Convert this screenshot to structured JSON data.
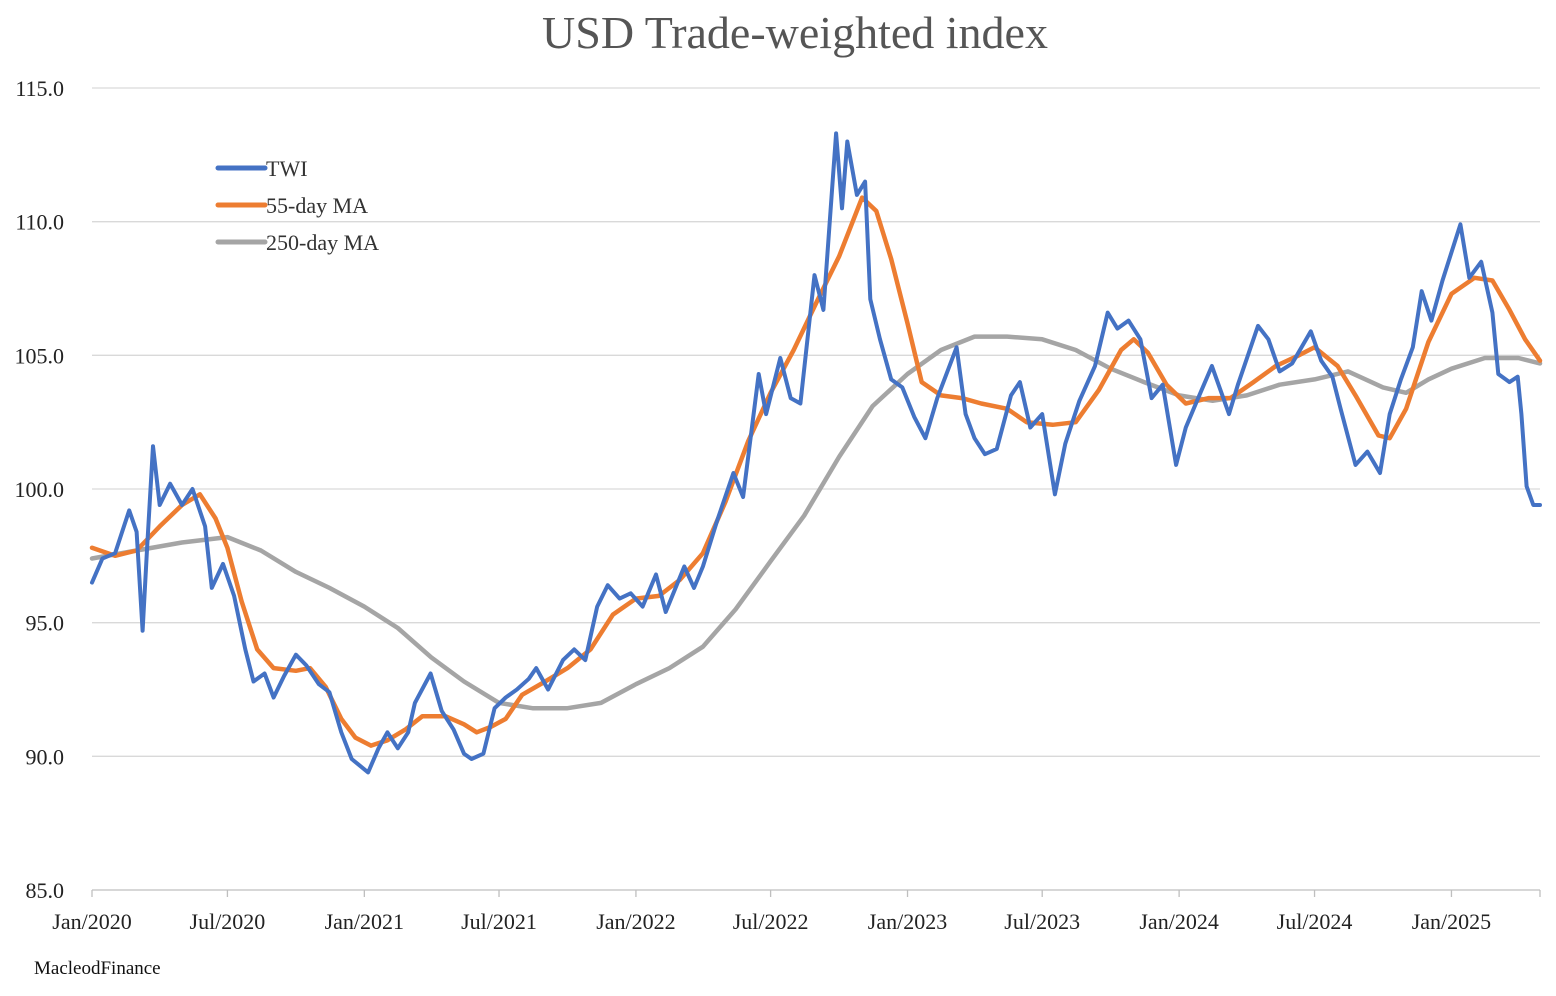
{
  "chart_data": {
    "type": "line",
    "title": "USD Trade-weighted index",
    "xlabel": "",
    "ylabel": "",
    "source": "MacleodFinance",
    "ylim": [
      85.0,
      115.0
    ],
    "y_ticks": [
      "85.0",
      "90.0",
      "95.0",
      "100.0",
      "105.0",
      "110.0",
      "115.0"
    ],
    "y_tick_values": [
      85,
      90,
      95,
      100,
      105,
      110,
      115
    ],
    "x_range": [
      "2020-01-01",
      "2025-04-30"
    ],
    "x_ticks": [
      {
        "label": "Jan/2020",
        "date": "2020-01-01"
      },
      {
        "label": "Jul/2020",
        "date": "2020-07-01"
      },
      {
        "label": "Jan/2021",
        "date": "2021-01-01"
      },
      {
        "label": "Jul/2021",
        "date": "2021-07-01"
      },
      {
        "label": "Jan/2022",
        "date": "2022-01-01"
      },
      {
        "label": "Jul/2022",
        "date": "2022-07-01"
      },
      {
        "label": "Jan/2023",
        "date": "2023-01-01"
      },
      {
        "label": "Jul/2023",
        "date": "2023-07-01"
      },
      {
        "label": "Jan/2024",
        "date": "2024-01-01"
      },
      {
        "label": "Jul/2024",
        "date": "2024-07-01"
      },
      {
        "label": "Jan/2025",
        "date": "2025-01-01"
      }
    ],
    "grid": "horizontal",
    "legend_position": "top-left",
    "series": [
      {
        "name": "TWI",
        "color": "#4472C4",
        "points": [
          [
            "2020-01-01",
            96.5
          ],
          [
            "2020-01-15",
            97.4
          ],
          [
            "2020-02-01",
            97.6
          ],
          [
            "2020-02-20",
            99.2
          ],
          [
            "2020-03-01",
            98.4
          ],
          [
            "2020-03-09",
            94.7
          ],
          [
            "2020-03-15",
            97.8
          ],
          [
            "2020-03-23",
            101.6
          ],
          [
            "2020-04-01",
            99.4
          ],
          [
            "2020-04-15",
            100.2
          ],
          [
            "2020-05-01",
            99.4
          ],
          [
            "2020-05-15",
            100.0
          ],
          [
            "2020-06-01",
            98.6
          ],
          [
            "2020-06-10",
            96.3
          ],
          [
            "2020-06-25",
            97.2
          ],
          [
            "2020-07-10",
            96.0
          ],
          [
            "2020-07-25",
            94.0
          ],
          [
            "2020-08-05",
            92.8
          ],
          [
            "2020-08-20",
            93.1
          ],
          [
            "2020-09-01",
            92.2
          ],
          [
            "2020-09-15",
            93.0
          ],
          [
            "2020-10-01",
            93.8
          ],
          [
            "2020-10-15",
            93.4
          ],
          [
            "2020-11-01",
            92.7
          ],
          [
            "2020-11-15",
            92.4
          ],
          [
            "2020-12-01",
            90.9
          ],
          [
            "2020-12-15",
            89.9
          ],
          [
            "2021-01-06",
            89.4
          ],
          [
            "2021-01-20",
            90.3
          ],
          [
            "2021-02-01",
            90.9
          ],
          [
            "2021-02-15",
            90.3
          ],
          [
            "2021-03-01",
            90.9
          ],
          [
            "2021-03-10",
            92.0
          ],
          [
            "2021-03-31",
            93.1
          ],
          [
            "2021-04-15",
            91.7
          ],
          [
            "2021-05-01",
            91.0
          ],
          [
            "2021-05-15",
            90.1
          ],
          [
            "2021-05-25",
            89.9
          ],
          [
            "2021-06-10",
            90.1
          ],
          [
            "2021-06-25",
            91.8
          ],
          [
            "2021-07-10",
            92.2
          ],
          [
            "2021-07-25",
            92.5
          ],
          [
            "2021-08-10",
            92.9
          ],
          [
            "2021-08-20",
            93.3
          ],
          [
            "2021-09-05",
            92.5
          ],
          [
            "2021-09-25",
            93.6
          ],
          [
            "2021-10-10",
            94.0
          ],
          [
            "2021-10-25",
            93.6
          ],
          [
            "2021-11-10",
            95.6
          ],
          [
            "2021-11-24",
            96.4
          ],
          [
            "2021-12-10",
            95.9
          ],
          [
            "2021-12-25",
            96.1
          ],
          [
            "2022-01-10",
            95.6
          ],
          [
            "2022-01-28",
            96.8
          ],
          [
            "2022-02-10",
            95.4
          ],
          [
            "2022-03-07",
            97.1
          ],
          [
            "2022-03-20",
            96.3
          ],
          [
            "2022-04-01",
            97.1
          ],
          [
            "2022-04-20",
            98.8
          ],
          [
            "2022-05-12",
            100.6
          ],
          [
            "2022-05-25",
            99.7
          ],
          [
            "2022-06-15",
            104.3
          ],
          [
            "2022-06-25",
            102.8
          ],
          [
            "2022-07-14",
            104.9
          ],
          [
            "2022-07-28",
            103.4
          ],
          [
            "2022-08-10",
            103.2
          ],
          [
            "2022-08-29",
            108.0
          ],
          [
            "2022-09-10",
            106.7
          ],
          [
            "2022-09-27",
            113.3
          ],
          [
            "2022-10-05",
            110.5
          ],
          [
            "2022-10-12",
            113.0
          ],
          [
            "2022-10-25",
            111.0
          ],
          [
            "2022-11-05",
            111.5
          ],
          [
            "2022-11-12",
            107.1
          ],
          [
            "2022-11-25",
            105.6
          ],
          [
            "2022-12-10",
            104.1
          ],
          [
            "2022-12-25",
            103.8
          ],
          [
            "2023-01-10",
            102.7
          ],
          [
            "2023-01-25",
            101.9
          ],
          [
            "2023-02-10",
            103.4
          ],
          [
            "2023-03-08",
            105.3
          ],
          [
            "2023-03-20",
            102.8
          ],
          [
            "2023-04-01",
            101.9
          ],
          [
            "2023-04-15",
            101.3
          ],
          [
            "2023-05-01",
            101.5
          ],
          [
            "2023-05-20",
            103.5
          ],
          [
            "2023-06-01",
            104.0
          ],
          [
            "2023-06-15",
            102.3
          ],
          [
            "2023-07-01",
            102.8
          ],
          [
            "2023-07-18",
            99.8
          ],
          [
            "2023-08-01",
            101.7
          ],
          [
            "2023-08-20",
            103.3
          ],
          [
            "2023-09-10",
            104.6
          ],
          [
            "2023-09-27",
            106.6
          ],
          [
            "2023-10-10",
            106.0
          ],
          [
            "2023-10-25",
            106.3
          ],
          [
            "2023-11-10",
            105.6
          ],
          [
            "2023-11-25",
            103.4
          ],
          [
            "2023-12-10",
            103.9
          ],
          [
            "2023-12-28",
            100.9
          ],
          [
            "2024-01-10",
            102.3
          ],
          [
            "2024-01-25",
            103.3
          ],
          [
            "2024-02-14",
            104.6
          ],
          [
            "2024-03-08",
            102.8
          ],
          [
            "2024-03-20",
            103.9
          ],
          [
            "2024-04-16",
            106.1
          ],
          [
            "2024-04-30",
            105.6
          ],
          [
            "2024-05-15",
            104.4
          ],
          [
            "2024-06-01",
            104.7
          ],
          [
            "2024-06-26",
            105.9
          ],
          [
            "2024-07-10",
            104.8
          ],
          [
            "2024-07-25",
            104.2
          ],
          [
            "2024-08-05",
            103.0
          ],
          [
            "2024-08-25",
            100.9
          ],
          [
            "2024-09-10",
            101.4
          ],
          [
            "2024-09-27",
            100.6
          ],
          [
            "2024-10-10",
            102.8
          ],
          [
            "2024-10-25",
            104.1
          ],
          [
            "2024-11-10",
            105.3
          ],
          [
            "2024-11-22",
            107.4
          ],
          [
            "2024-12-05",
            106.3
          ],
          [
            "2024-12-20",
            107.8
          ],
          [
            "2025-01-13",
            109.9
          ],
          [
            "2025-01-25",
            107.9
          ],
          [
            "2025-02-10",
            108.5
          ],
          [
            "2025-02-25",
            106.6
          ],
          [
            "2025-03-05",
            104.3
          ],
          [
            "2025-03-20",
            104.0
          ],
          [
            "2025-03-31",
            104.2
          ],
          [
            "2025-04-05",
            102.8
          ],
          [
            "2025-04-12",
            100.1
          ],
          [
            "2025-04-21",
            99.4
          ],
          [
            "2025-04-30",
            99.4
          ]
        ]
      },
      {
        "name": "55-day MA",
        "color": "#ED7D31",
        "points": [
          [
            "2020-01-01",
            97.8
          ],
          [
            "2020-02-01",
            97.5
          ],
          [
            "2020-03-01",
            97.7
          ],
          [
            "2020-04-01",
            98.6
          ],
          [
            "2020-05-01",
            99.4
          ],
          [
            "2020-05-25",
            99.8
          ],
          [
            "2020-06-15",
            98.9
          ],
          [
            "2020-07-01",
            97.8
          ],
          [
            "2020-07-20",
            95.8
          ],
          [
            "2020-08-10",
            94.0
          ],
          [
            "2020-09-01",
            93.3
          ],
          [
            "2020-10-01",
            93.2
          ],
          [
            "2020-10-20",
            93.3
          ],
          [
            "2020-11-10",
            92.6
          ],
          [
            "2020-12-01",
            91.4
          ],
          [
            "2020-12-20",
            90.7
          ],
          [
            "2021-01-10",
            90.4
          ],
          [
            "2021-02-01",
            90.6
          ],
          [
            "2021-02-25",
            91.0
          ],
          [
            "2021-03-20",
            91.5
          ],
          [
            "2021-04-20",
            91.5
          ],
          [
            "2021-05-15",
            91.2
          ],
          [
            "2021-06-01",
            90.9
          ],
          [
            "2021-06-20",
            91.1
          ],
          [
            "2021-07-10",
            91.4
          ],
          [
            "2021-08-01",
            92.3
          ],
          [
            "2021-09-01",
            92.8
          ],
          [
            "2021-10-01",
            93.3
          ],
          [
            "2021-11-01",
            94.0
          ],
          [
            "2021-12-01",
            95.3
          ],
          [
            "2022-01-01",
            95.9
          ],
          [
            "2022-02-01",
            96.0
          ],
          [
            "2022-03-01",
            96.6
          ],
          [
            "2022-04-01",
            97.6
          ],
          [
            "2022-05-01",
            99.5
          ],
          [
            "2022-06-01",
            101.8
          ],
          [
            "2022-07-01",
            103.6
          ],
          [
            "2022-08-01",
            105.2
          ],
          [
            "2022-09-01",
            107.0
          ],
          [
            "2022-10-01",
            108.7
          ],
          [
            "2022-11-01",
            110.9
          ],
          [
            "2022-11-20",
            110.4
          ],
          [
            "2022-12-10",
            108.6
          ],
          [
            "2023-01-01",
            106.2
          ],
          [
            "2023-01-20",
            104.0
          ],
          [
            "2023-02-15",
            103.5
          ],
          [
            "2023-03-15",
            103.4
          ],
          [
            "2023-04-10",
            103.2
          ],
          [
            "2023-05-15",
            103.0
          ],
          [
            "2023-06-10",
            102.5
          ],
          [
            "2023-07-15",
            102.4
          ],
          [
            "2023-08-15",
            102.5
          ],
          [
            "2023-09-15",
            103.7
          ],
          [
            "2023-10-15",
            105.2
          ],
          [
            "2023-11-01",
            105.6
          ],
          [
            "2023-11-20",
            105.1
          ],
          [
            "2023-12-15",
            103.9
          ],
          [
            "2024-01-10",
            103.2
          ],
          [
            "2024-02-10",
            103.4
          ],
          [
            "2024-03-10",
            103.4
          ],
          [
            "2024-04-10",
            104.0
          ],
          [
            "2024-05-10",
            104.6
          ],
          [
            "2024-06-10",
            105.0
          ],
          [
            "2024-07-01",
            105.3
          ],
          [
            "2024-08-01",
            104.6
          ],
          [
            "2024-08-25",
            103.5
          ],
          [
            "2024-09-25",
            102.0
          ],
          [
            "2024-10-10",
            101.9
          ],
          [
            "2024-11-01",
            103.0
          ],
          [
            "2024-12-01",
            105.5
          ],
          [
            "2025-01-01",
            107.3
          ],
          [
            "2025-02-01",
            107.9
          ],
          [
            "2025-02-25",
            107.8
          ],
          [
            "2025-03-20",
            106.7
          ],
          [
            "2025-04-10",
            105.6
          ],
          [
            "2025-04-30",
            104.8
          ]
        ]
      },
      {
        "name": "250-day MA",
        "color": "#A5A5A5",
        "points": [
          [
            "2020-01-01",
            97.4
          ],
          [
            "2020-03-01",
            97.7
          ],
          [
            "2020-05-01",
            98.0
          ],
          [
            "2020-07-01",
            98.2
          ],
          [
            "2020-08-15",
            97.7
          ],
          [
            "2020-10-01",
            96.9
          ],
          [
            "2020-11-15",
            96.3
          ],
          [
            "2021-01-01",
            95.6
          ],
          [
            "2021-02-15",
            94.8
          ],
          [
            "2021-04-01",
            93.7
          ],
          [
            "2021-05-15",
            92.8
          ],
          [
            "2021-07-01",
            92.0
          ],
          [
            "2021-08-15",
            91.8
          ],
          [
            "2021-10-01",
            91.8
          ],
          [
            "2021-11-15",
            92.0
          ],
          [
            "2022-01-01",
            92.7
          ],
          [
            "2022-02-15",
            93.3
          ],
          [
            "2022-04-01",
            94.1
          ],
          [
            "2022-05-15",
            95.5
          ],
          [
            "2022-07-01",
            97.3
          ],
          [
            "2022-08-15",
            99.0
          ],
          [
            "2022-10-01",
            101.2
          ],
          [
            "2022-11-15",
            103.1
          ],
          [
            "2023-01-01",
            104.3
          ],
          [
            "2023-02-15",
            105.2
          ],
          [
            "2023-04-01",
            105.7
          ],
          [
            "2023-05-15",
            105.7
          ],
          [
            "2023-07-01",
            105.6
          ],
          [
            "2023-08-15",
            105.2
          ],
          [
            "2023-10-01",
            104.5
          ],
          [
            "2023-11-15",
            104.0
          ],
          [
            "2024-01-01",
            103.5
          ],
          [
            "2024-02-15",
            103.3
          ],
          [
            "2024-04-01",
            103.5
          ],
          [
            "2024-05-15",
            103.9
          ],
          [
            "2024-07-01",
            104.1
          ],
          [
            "2024-08-15",
            104.4
          ],
          [
            "2024-10-01",
            103.8
          ],
          [
            "2024-11-01",
            103.6
          ],
          [
            "2024-12-01",
            104.1
          ],
          [
            "2025-01-01",
            104.5
          ],
          [
            "2025-02-15",
            104.9
          ],
          [
            "2025-04-01",
            104.9
          ],
          [
            "2025-04-30",
            104.7
          ]
        ]
      }
    ]
  }
}
